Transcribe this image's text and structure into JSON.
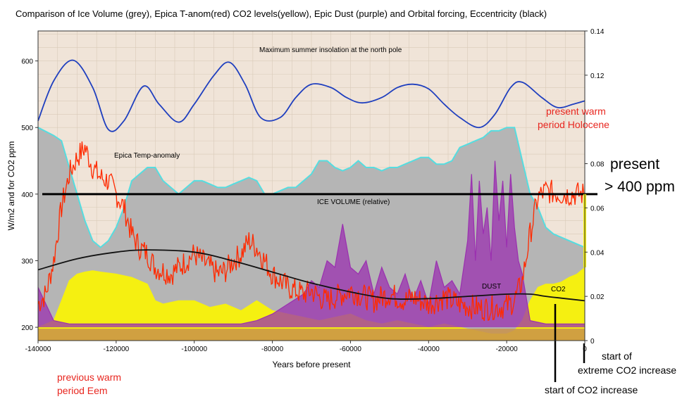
{
  "chart_data": {
    "type": "line",
    "title": "Comparison of Ice Volume (grey), Epica T-anom(red) CO2 levels(yellow), Epic Dust (purple) and Orbital forcing, Eccentricity (black)",
    "xlabel": "Years before present",
    "ylabel": "W/m2 and for CO2 ppm",
    "xlim": [
      -140000,
      0
    ],
    "ylim": [
      180,
      645
    ],
    "y2lim": [
      0,
      0.14
    ],
    "x_ticks": [
      "-140000",
      "-120000",
      "-100000",
      "-80000",
      "-60000",
      "-40000",
      "-20000",
      "0"
    ],
    "y_ticks": [
      "200",
      "300",
      "400",
      "500",
      "600"
    ],
    "y2_ticks": [
      "0",
      "0.02",
      "0.04",
      "0.06",
      "0.08",
      "0.12",
      "0.14"
    ],
    "grid": true,
    "series": [
      {
        "name": "Maximum summer insolation at the north pole",
        "color": "#1f3fbf",
        "axis": "left",
        "x": [
          -140000,
          -136000,
          -131000,
          -126000,
          -122000,
          -118000,
          -113000,
          -109000,
          -104000,
          -100000,
          -95000,
          -91000,
          -87000,
          -83000,
          -78000,
          -74000,
          -70000,
          -65000,
          -61000,
          -57000,
          -52000,
          -48000,
          -44000,
          -40000,
          -36000,
          -32000,
          -27000,
          -23000,
          -19000,
          -16000,
          -11000,
          -7000,
          -3000,
          0
        ],
        "values": [
          510,
          570,
          601,
          560,
          497,
          510,
          562,
          535,
          508,
          535,
          578,
          598,
          565,
          515,
          515,
          545,
          565,
          560,
          545,
          537,
          545,
          560,
          565,
          558,
          535,
          515,
          500,
          520,
          560,
          568,
          545,
          530,
          535,
          540
        ]
      },
      {
        "name": "ICE VOLUME (relative)",
        "color": "#b5b5b5",
        "edge_color": "#55dde0",
        "axis": "left",
        "x": [
          -140000,
          -136000,
          -134000,
          -132000,
          -130000,
          -128000,
          -126000,
          -124000,
          -122000,
          -120000,
          -118000,
          -116000,
          -114000,
          -112000,
          -110000,
          -108000,
          -106000,
          -104000,
          -102000,
          -100000,
          -98000,
          -96000,
          -94000,
          -92000,
          -90000,
          -88000,
          -86000,
          -84000,
          -82000,
          -80000,
          -78000,
          -76000,
          -74000,
          -72000,
          -70000,
          -68000,
          -66000,
          -64000,
          -62000,
          -60000,
          -58000,
          -56000,
          -54000,
          -52000,
          -50000,
          -48000,
          -46000,
          -44000,
          -42000,
          -40000,
          -38000,
          -36000,
          -34000,
          -32000,
          -30000,
          -28000,
          -26000,
          -24000,
          -22000,
          -20000,
          -18000,
          -16000,
          -14000,
          -12000,
          -10000,
          -8000,
          -6000,
          -4000,
          -2000,
          0
        ],
        "values": [
          500,
          488,
          480,
          440,
          400,
          360,
          330,
          320,
          330,
          350,
          380,
          420,
          430,
          440,
          440,
          420,
          410,
          400,
          410,
          420,
          420,
          415,
          410,
          410,
          415,
          420,
          425,
          420,
          400,
          400,
          405,
          410,
          410,
          420,
          430,
          450,
          450,
          440,
          435,
          440,
          450,
          440,
          440,
          435,
          440,
          440,
          445,
          450,
          455,
          455,
          445,
          445,
          450,
          470,
          475,
          480,
          485,
          495,
          495,
          500,
          500,
          450,
          400,
          380,
          350,
          340,
          335,
          330,
          325,
          320
        ]
      },
      {
        "name": "Epica Temp-anomaly",
        "color": "#ff2a00",
        "axis": "left",
        "x": [
          -140000,
          -138000,
          -136000,
          -134000,
          -132000,
          -130000,
          -128000,
          -126000,
          -124000,
          -122000,
          -120000,
          -118000,
          -116000,
          -114000,
          -112000,
          -110000,
          -108000,
          -106000,
          -104000,
          -102000,
          -100000,
          -98000,
          -96000,
          -94000,
          -92000,
          -90000,
          -88000,
          -86000,
          -84000,
          -82000,
          -80000,
          -78000,
          -76000,
          -74000,
          -72000,
          -70000,
          -68000,
          -66000,
          -64000,
          -62000,
          -60000,
          -58000,
          -56000,
          -54000,
          -52000,
          -50000,
          -48000,
          -46000,
          -44000,
          -42000,
          -40000,
          -38000,
          -36000,
          -34000,
          -32000,
          -30000,
          -28000,
          -26000,
          -24000,
          -22000,
          -20000,
          -18000,
          -16000,
          -14000,
          -12000,
          -10000,
          -8000,
          -6000,
          -4000,
          -2000,
          0
        ],
        "values": [
          235,
          250,
          300,
          380,
          430,
          455,
          470,
          440,
          425,
          420,
          400,
          380,
          340,
          320,
          310,
          290,
          285,
          280,
          290,
          300,
          310,
          300,
          290,
          280,
          285,
          300,
          310,
          330,
          320,
          300,
          280,
          270,
          260,
          255,
          250,
          255,
          245,
          240,
          245,
          250,
          255,
          250,
          245,
          240,
          245,
          250,
          245,
          240,
          245,
          240,
          235,
          240,
          245,
          240,
          235,
          232,
          230,
          228,
          230,
          230,
          232,
          240,
          270,
          340,
          395,
          405,
          402,
          400,
          400,
          400,
          400
        ]
      },
      {
        "name": "DUST",
        "color": "#9b30b0",
        "axis": "left",
        "x": [
          -140000,
          -136000,
          -132000,
          -128000,
          -124000,
          -120000,
          -116000,
          -112000,
          -108000,
          -104000,
          -100000,
          -96000,
          -92000,
          -88000,
          -84000,
          -80000,
          -76000,
          -72000,
          -70000,
          -68000,
          -66000,
          -64000,
          -62000,
          -60000,
          -58000,
          -56000,
          -54000,
          -52000,
          -50000,
          -48000,
          -46000,
          -44000,
          -42000,
          -40000,
          -38000,
          -36000,
          -34000,
          -32000,
          -30000,
          -29000,
          -28000,
          -27000,
          -26000,
          -25000,
          -24000,
          -23000,
          -22000,
          -21000,
          -20000,
          -19000,
          -18000,
          -17000,
          -16000,
          -14000,
          -10000,
          -5000,
          0
        ],
        "values": [
          260,
          210,
          205,
          205,
          205,
          205,
          205,
          205,
          205,
          205,
          205,
          205,
          205,
          205,
          210,
          220,
          235,
          250,
          270,
          260,
          300,
          290,
          355,
          290,
          280,
          300,
          250,
          290,
          260,
          250,
          280,
          240,
          270,
          235,
          300,
          260,
          270,
          250,
          330,
          430,
          300,
          420,
          340,
          380,
          300,
          450,
          360,
          420,
          320,
          430,
          350,
          300,
          280,
          210,
          205,
          205,
          205
        ]
      },
      {
        "name": "CO2",
        "color": "#f5f011",
        "axis": "left",
        "x": [
          -140000,
          -136000,
          -134000,
          -132000,
          -130000,
          -128000,
          -126000,
          -124000,
          -120000,
          -116000,
          -112000,
          -110000,
          -108000,
          -104000,
          -100000,
          -96000,
          -92000,
          -88000,
          -84000,
          -80000,
          -76000,
          -72000,
          -68000,
          -64000,
          -60000,
          -56000,
          -52000,
          -48000,
          -44000,
          -40000,
          -36000,
          -32000,
          -28000,
          -24000,
          -20000,
          -18000,
          -16000,
          -14000,
          -12000,
          -10000,
          -8000,
          -6000,
          -4000,
          -2000,
          0
        ],
        "values": [
          200,
          210,
          240,
          270,
          280,
          283,
          285,
          283,
          280,
          275,
          265,
          240,
          235,
          240,
          240,
          230,
          235,
          225,
          240,
          225,
          220,
          215,
          210,
          215,
          220,
          210,
          205,
          210,
          205,
          200,
          205,
          200,
          195,
          190,
          190,
          195,
          210,
          240,
          260,
          265,
          265,
          268,
          275,
          280,
          290
        ]
      },
      {
        "name": "Eccentricity",
        "color": "#111111",
        "axis": "right",
        "x": [
          -140000,
          -130000,
          -120000,
          -112000,
          -100000,
          -90000,
          -80000,
          -70000,
          -60000,
          -50000,
          -40000,
          -30000,
          -20000,
          -14000,
          -10000,
          -5000,
          0
        ],
        "values": [
          0.032,
          0.037,
          0.04,
          0.041,
          0.04,
          0.036,
          0.031,
          0.026,
          0.022,
          0.019,
          0.019,
          0.02,
          0.021,
          0.021,
          0.02,
          0.019,
          0.018
        ]
      }
    ],
    "annotations": [
      {
        "text": "Maximum summer insolation at the north pole"
      },
      {
        "text": "Epica Temp-anomaly"
      },
      {
        "text": "ICE VOLUME (relative)"
      },
      {
        "text": "DUST"
      },
      {
        "text": "CO2"
      }
    ],
    "reference_line": {
      "y": 400,
      "color": "#000000"
    },
    "outside_labels": {
      "present_warm_1": "present warm",
      "present_warm_2": "period Holocene",
      "present_1": "present",
      "present_2": "> 400 ppm",
      "start_extreme_1": "start of",
      "start_extreme_2": "extreme CO2 increase",
      "start_co2": "start of CO2 increase",
      "previous_warm_1": "previous warm",
      "previous_warm_2": "period Eem"
    },
    "colors": {
      "plot_bg": "#f0e4d8",
      "grid": "#d9cbb9",
      "base_fill": "#c9924a",
      "label_red": "#e8261f",
      "marker_yellow": "#f5f011"
    }
  }
}
